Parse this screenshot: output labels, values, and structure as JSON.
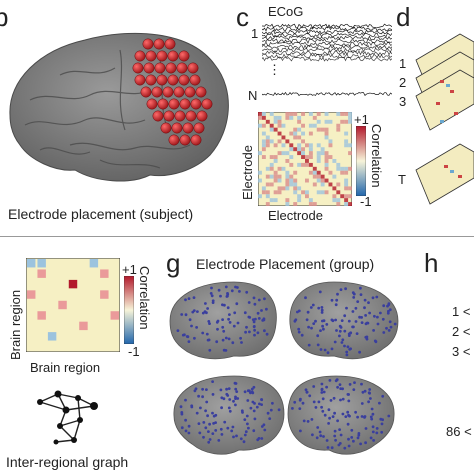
{
  "top": {
    "label_b": "b",
    "label_c": "c",
    "label_d": "d",
    "caption_b": "Electrode placement (subject)",
    "ecog_title": "ECoG",
    "trace_first": "1",
    "trace_dots": "⋮",
    "trace_last": "N",
    "matrix_xlabel": "Electrode",
    "matrix_ylabel": "Electrode",
    "colorbar_top": "+1",
    "colorbar_bottom": "-1",
    "colorbar_label": "Correlation",
    "layers": [
      "1",
      "2",
      "3"
    ],
    "layer_last": "T"
  },
  "bottom": {
    "label_g": "g",
    "label_h": "h",
    "matrix_xlabel": "Brain region",
    "matrix_ylabel": "Brain region",
    "colorbar_top": "+1",
    "colorbar_bottom": "-1",
    "colorbar_label": "Correlation",
    "graph_caption": "Inter-regional graph",
    "group_title": "Electrode Placement (group)",
    "h_items": [
      "1",
      "2",
      "3"
    ],
    "h_last": "86"
  },
  "colors": {
    "brain": "#7a7a7a",
    "electrode": "#c0252b",
    "group_dot": "#3a3f9e",
    "matrix_bg": "#f6f0c4",
    "divider": "#999999"
  }
}
